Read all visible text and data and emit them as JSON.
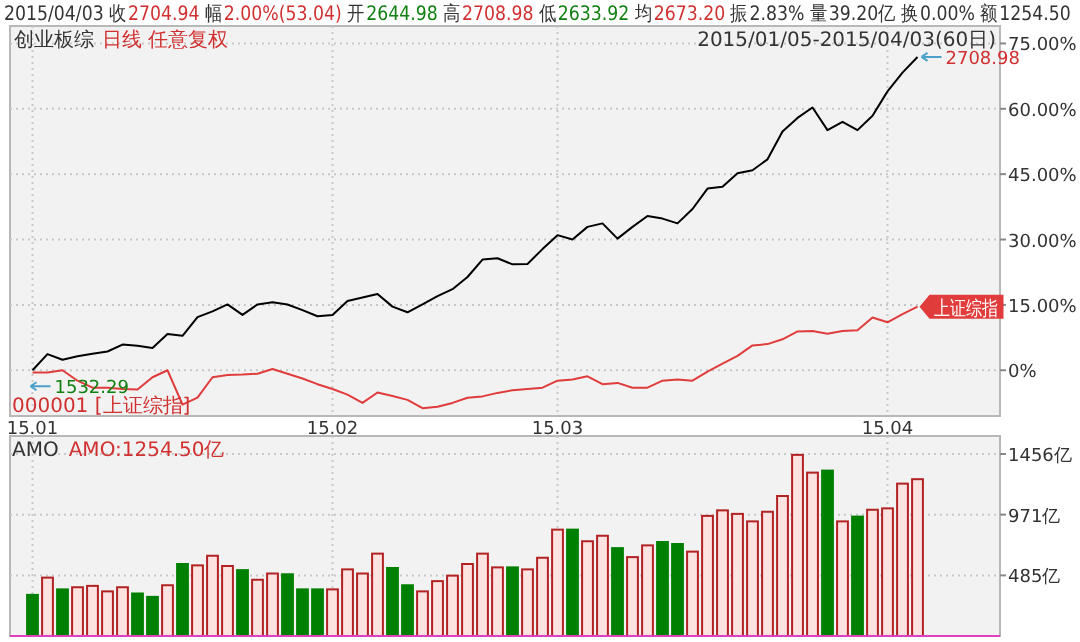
{
  "chart_data": [
    {
      "type": "line",
      "title": "创业板综",
      "subtitle": "日线 任意复权",
      "categories": [
        "15.01",
        null,
        null,
        null,
        null,
        null,
        null,
        null,
        null,
        null,
        null,
        null,
        null,
        null,
        null,
        null,
        null,
        null,
        null,
        null,
        "15.02",
        null,
        null,
        null,
        null,
        null,
        null,
        null,
        null,
        null,
        null,
        null,
        null,
        null,
        null,
        "15.03",
        null,
        null,
        null,
        null,
        null,
        null,
        null,
        null,
        null,
        null,
        null,
        null,
        null,
        null,
        null,
        null,
        null,
        null,
        null,
        null,
        null,
        "15.04",
        null,
        null,
        null,
        null,
        null,
        null,
        null
      ],
      "series": [
        {
          "color": "#000000",
          "values": [
            0,
            3.7,
            2.4,
            3.2,
            3.8,
            4.3,
            5.9,
            5.6,
            5.1,
            8.3,
            7.9,
            12.2,
            13.5,
            15.1,
            12.7,
            15.1,
            15.6,
            15.1,
            13.8,
            12.4,
            12.7,
            15.9,
            16.7,
            17.5,
            14.6,
            13.3,
            15.1,
            17.0,
            18.6,
            21.4,
            25.4,
            25.7,
            24.3,
            24.4,
            27.8,
            31.0,
            30.0,
            32.9,
            33.7,
            30.2,
            32.9,
            35.4,
            34.8,
            33.7,
            37.0,
            41.7,
            42.1,
            45.2,
            45.9,
            48.4,
            54.8,
            57.9,
            60.3,
            55.1,
            57.0,
            55.1,
            58.4,
            64.0,
            68.3,
            71.9,
            null,
            null,
            null,
            null,
            null
          ]
        },
        {
          "name": "上证综指",
          "color": "#e03c3c",
          "values": [
            -0.5,
            -0.5,
            0,
            -2.4,
            -4.0,
            -4.0,
            -4.3,
            -4.4,
            -1.6,
            0,
            -7.9,
            -6.3,
            -1.6,
            -1.1,
            -1.0,
            -0.8,
            0.3,
            -0.8,
            -1.9,
            -3.2,
            -4.3,
            -5.6,
            -7.5,
            -5.1,
            -5.9,
            -6.8,
            -8.7,
            -8.4,
            -7.5,
            -6.3,
            -6.0,
            -5.2,
            -4.6,
            -4.3,
            -4.0,
            -2.4,
            -2.1,
            -1.4,
            -3.2,
            -2.9,
            -4.0,
            -4.0,
            -2.4,
            -2.1,
            -2.4,
            -0.3,
            1.5,
            3.3,
            5.7,
            6.0,
            7.1,
            8.9,
            9.0,
            8.4,
            9.0,
            9.2,
            12.1,
            11.0,
            12.9,
            14.6,
            null,
            null,
            null,
            null,
            null
          ]
        }
      ],
      "ylim": [
        -10.5,
        79
      ],
      "yticks": [
        {
          "value": 0,
          "label": "0%"
        },
        {
          "value": 15,
          "label": "15.00%"
        },
        {
          "value": 30,
          "label": "30.00%"
        },
        {
          "value": 45,
          "label": "45.00%"
        },
        {
          "value": 60,
          "label": "60.00%"
        },
        {
          "value": 75,
          "label": "75.00%"
        }
      ],
      "grid": true,
      "marker": "none",
      "line_style": "solid",
      "annotations": [
        "2015/04/03",
        "收",
        "2704.94",
        "幅",
        "2.00%(53.04)",
        "开",
        "2644.98",
        "高",
        "2708.98",
        "低",
        "2633.92",
        "均",
        "2673.20",
        "振",
        "2.83%",
        "量",
        "39.20亿",
        "换",
        "0.00%",
        "额",
        "1254.50",
        "2015/01/05-2015/04/03(60日)",
        "2708.98",
        "1532.29",
        "000001 [上证综指]"
      ]
    },
    {
      "type": "bar",
      "title": "AMO",
      "categories": [
        "15.01",
        null,
        null,
        null,
        null,
        null,
        null,
        null,
        null,
        null,
        null,
        null,
        null,
        null,
        null,
        null,
        null,
        null,
        null,
        null,
        "15.02",
        null,
        null,
        null,
        null,
        null,
        null,
        null,
        null,
        null,
        null,
        null,
        null,
        null,
        null,
        "15.03",
        null,
        null,
        null,
        null,
        null,
        null,
        null,
        null,
        null,
        null,
        null,
        null,
        null,
        null,
        null,
        null,
        null,
        null,
        null,
        null,
        null,
        "15.04",
        null,
        null,
        null,
        null,
        null,
        null,
        null
      ],
      "values": [
        329,
        467,
        373,
        390,
        401,
        357,
        390,
        340,
        313,
        406,
        576,
        565,
        642,
        560,
        527,
        450,
        500,
        494,
        373,
        373,
        373,
        533,
        500,
        659,
        544,
        406,
        357,
        439,
        483,
        576,
        659,
        549,
        549,
        533,
        626,
        851,
        851,
        758,
        802,
        703,
        631,
        725,
        752,
        736,
        675,
        961,
        1005,
        977,
        917,
        994,
        1120,
        1449,
        1307,
        1323,
        917,
        955,
        1010,
        1021,
        1219,
        1254.5,
        null,
        null,
        null,
        null,
        null
      ],
      "colors": [
        "#008000",
        "#fde2e2",
        "#008000",
        "#fde2e2",
        "#fde2e2",
        "#fde2e2",
        "#fde2e2",
        "#008000",
        "#008000",
        "#fde2e2",
        "#008000",
        "#fde2e2",
        "#fde2e2",
        "#fde2e2",
        "#008000",
        "#fde2e2",
        "#fde2e2",
        "#008000",
        "#008000",
        "#008000",
        "#fde2e2",
        "#fde2e2",
        "#fde2e2",
        "#fde2e2",
        "#008000",
        "#008000",
        "#fde2e2",
        "#fde2e2",
        "#fde2e2",
        "#fde2e2",
        "#fde2e2",
        "#fde2e2",
        "#008000",
        "#fde2e2",
        "#fde2e2",
        "#fde2e2",
        "#008000",
        "#fde2e2",
        "#fde2e2",
        "#008000",
        "#fde2e2",
        "#fde2e2",
        "#008000",
        "#008000",
        "#fde2e2",
        "#fde2e2",
        "#fde2e2",
        "#fde2e2",
        "#fde2e2",
        "#fde2e2",
        "#fde2e2",
        "#fde2e2",
        "#fde2e2",
        "#008000",
        "#fde2e2",
        "#008000",
        "#fde2e2",
        "#fde2e2",
        "#fde2e2",
        "#fde2e2",
        null,
        null,
        null,
        null,
        null
      ],
      "ylim": [
        0,
        1600
      ],
      "yticks": [
        {
          "value": 485,
          "label": "485亿"
        },
        {
          "value": 971,
          "label": "971亿"
        },
        {
          "value": 1456,
          "label": "1456亿"
        }
      ],
      "grid": true,
      "tick_labels": "y",
      "annotations": [
        "AMO:1254.50亿"
      ]
    }
  ]
}
